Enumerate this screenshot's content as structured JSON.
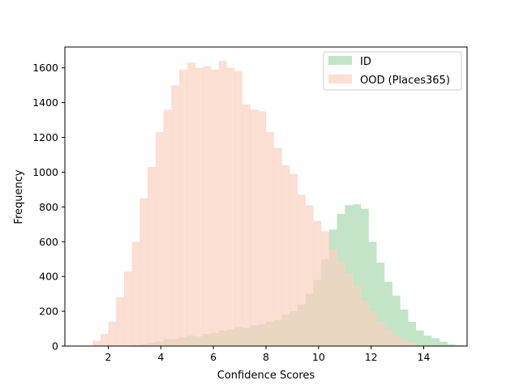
{
  "chart_data": {
    "type": "bar",
    "title": "",
    "xlabel": "Confidence Scores",
    "ylabel": "Frequency",
    "xlim": [
      0.35,
      15.65
    ],
    "ylim": [
      0,
      1720
    ],
    "xticks": [
      2,
      4,
      6,
      8,
      10,
      12,
      14
    ],
    "yticks": [
      0,
      200,
      400,
      600,
      800,
      1000,
      1200,
      1400,
      1600
    ],
    "grid": false,
    "legend_position": "top-right",
    "bin_width": 0.3,
    "series": [
      {
        "name": "ID",
        "color": "#c3e4c6",
        "opacity": 1,
        "bin_start": 2.9,
        "values": [
          5,
          10,
          20,
          25,
          40,
          40,
          50,
          60,
          55,
          70,
          75,
          90,
          95,
          110,
          105,
          120,
          125,
          140,
          150,
          180,
          200,
          240,
          300,
          380,
          500,
          670,
          760,
          810,
          815,
          790,
          600,
          480,
          370,
          290,
          210,
          140,
          90,
          60,
          45,
          25,
          10,
          5
        ]
      },
      {
        "name": "OOD (Places365)",
        "color": "#fad2c0",
        "opacity": 0.7,
        "bin_start": 1.4,
        "values": [
          30,
          70,
          140,
          280,
          430,
          600,
          850,
          1030,
          1230,
          1360,
          1500,
          1590,
          1630,
          1600,
          1610,
          1590,
          1640,
          1600,
          1580,
          1390,
          1360,
          1350,
          1230,
          1140,
          1040,
          990,
          870,
          810,
          720,
          660,
          560,
          490,
          420,
          350,
          260,
          200,
          140,
          100,
          60,
          35,
          20
        ]
      }
    ]
  }
}
